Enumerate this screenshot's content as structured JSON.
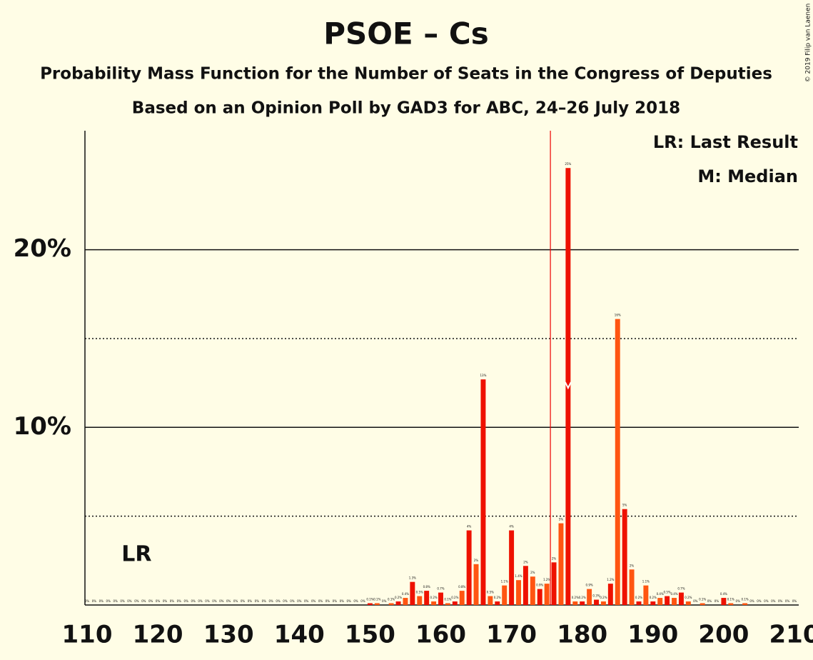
{
  "chart_data": {
    "type": "bar",
    "title": "PSOE – Cs",
    "subtitle": "Probability Mass Function for the Number of Seats in the Congress of Deputies",
    "subtitle2": "Based on an Opinion Poll by GAD3 for ABC, 24–26 July 2018",
    "copyright": "© 2019 Filip van Laenen",
    "legend": [
      "LR: Last Result",
      "M: Median"
    ],
    "last_result_label": "LR",
    "last_result": 117,
    "median": 178,
    "majority": 176,
    "bar_colors": [
      "#ee1100",
      "#ff5511"
    ],
    "majority_color": "#ee0000",
    "x": [
      110,
      111,
      112,
      113,
      114,
      115,
      116,
      117,
      118,
      119,
      120,
      121,
      122,
      123,
      124,
      125,
      126,
      127,
      128,
      129,
      130,
      131,
      132,
      133,
      134,
      135,
      136,
      137,
      138,
      139,
      140,
      141,
      142,
      143,
      144,
      145,
      146,
      147,
      148,
      149,
      150,
      151,
      152,
      153,
      154,
      155,
      156,
      157,
      158,
      159,
      160,
      161,
      162,
      163,
      164,
      165,
      166,
      167,
      168,
      169,
      170,
      171,
      172,
      173,
      174,
      175,
      176,
      177,
      178,
      179,
      180,
      181,
      182,
      183,
      184,
      185,
      186,
      187,
      188,
      189,
      190,
      191,
      192,
      193,
      194,
      195,
      196,
      197,
      198,
      199,
      200,
      201,
      202,
      203,
      204,
      205,
      206,
      207,
      208,
      209,
      210
    ],
    "values": [
      0,
      0,
      0,
      0,
      0,
      0,
      0,
      0,
      0,
      0,
      0,
      0,
      0,
      0,
      0,
      0,
      0,
      0,
      0,
      0,
      0,
      0,
      0,
      0,
      0,
      0,
      0,
      0,
      0,
      0,
      0,
      0,
      0,
      0,
      0,
      0,
      0,
      0,
      0,
      0,
      0.1,
      0.1,
      0,
      0.1,
      0.2,
      0.4,
      1.3,
      0.5,
      0.8,
      0.2,
      0.7,
      0.1,
      0.2,
      0.8,
      4.2,
      2.3,
      12.7,
      0.5,
      0.2,
      1.1,
      4.2,
      1.4,
      2.2,
      1.6,
      0.9,
      1.2,
      2.4,
      4.6,
      24.6,
      0.2,
      0.2,
      0.9,
      0.3,
      0.2,
      1.2,
      16.1,
      5.4,
      2,
      0.2,
      1.1,
      0.2,
      0.4,
      0.5,
      0.4,
      0.7,
      0.2,
      0,
      0.1,
      0,
      0,
      0.4,
      0.1,
      0,
      0.1,
      0,
      0,
      0,
      0,
      0,
      0,
      0
    ],
    "value_labels": [
      "0%",
      "0%",
      "0%",
      "0%",
      "0%",
      "0%",
      "0%",
      "0%",
      "0%",
      "0%",
      "0%",
      "0%",
      "0%",
      "0%",
      "0%",
      "0%",
      "0%",
      "0%",
      "0%",
      "0%",
      "0%",
      "0%",
      "0%",
      "0%",
      "0%",
      "0%",
      "0%",
      "0%",
      "0%",
      "0%",
      "0%",
      "0%",
      "0%",
      "0%",
      "0%",
      "0%",
      "0%",
      "0%",
      "0%",
      "0%",
      "0.1%",
      "0.1%",
      "0%",
      "0.1%",
      "0.2%",
      "0.4%",
      "1.3%",
      "0.5%",
      "0.8%",
      "0.2%",
      "0.7%",
      "0.1%",
      "0.2%",
      "0.8%",
      "4%",
      "2%",
      "13%",
      "0.5%",
      "0.2%",
      "1.1%",
      "4%",
      "1.4%",
      "2%",
      "2%",
      "0.9%",
      "1.2%",
      "2%",
      "5%",
      "25%",
      "0.2%",
      "0.2%",
      "0.9%",
      "0.3%",
      "0.2%",
      "1.2%",
      "16%",
      "5%",
      "2%",
      "0.2%",
      "1.1%",
      "0.2%",
      "0.4%",
      "0.5%",
      "0.4%",
      "0.7%",
      "0.2%",
      "0%",
      "0.1%",
      "0%",
      "0%",
      "0.4%",
      "0.1%",
      "0%",
      "0.1%",
      "0%",
      "0%",
      "0%",
      "0%",
      "0%",
      "0%",
      "0%"
    ],
    "xlim": [
      110,
      210
    ],
    "ylim": [
      0,
      26.7
    ],
    "xticks": [
      110,
      120,
      130,
      140,
      150,
      160,
      170,
      180,
      190,
      200,
      210
    ],
    "yticks": [
      {
        "value": 10,
        "label": "10%"
      },
      {
        "value": 20,
        "label": "20%"
      }
    ],
    "minor_yticks": [
      5,
      15
    ],
    "grid": true
  }
}
